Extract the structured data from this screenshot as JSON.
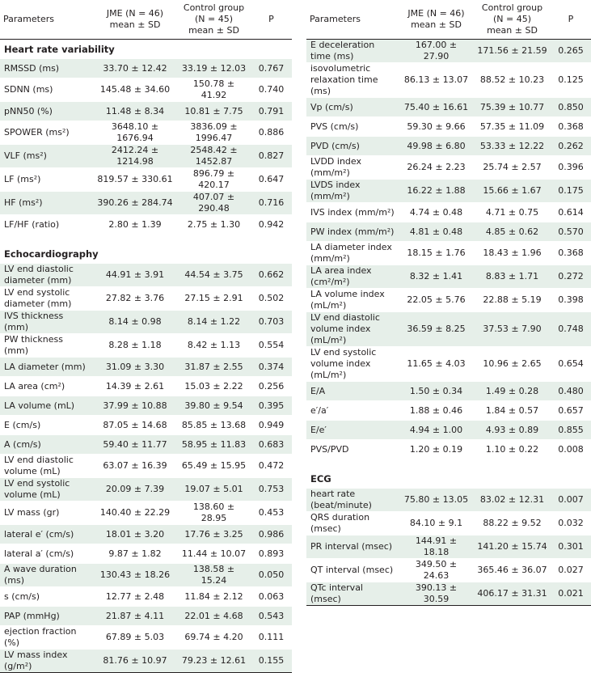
{
  "headers": {
    "parameters": "Parameters",
    "jme": [
      "JME (N = 46)",
      "mean ± SD"
    ],
    "control": [
      "Control group",
      "(N = 45)",
      "mean ± SD"
    ],
    "p": "P"
  },
  "left": [
    {
      "section": "Heart rate variability"
    },
    {
      "label": "RMSSD (ms)",
      "jme": "33.70 ± 12.42",
      "control": "33.19 ± 12.03",
      "p": "0.767"
    },
    {
      "label": "SDNN (ms)",
      "jme": "145.48 ± 34.60",
      "control": "150.78 ± 41.92",
      "p": "0.740"
    },
    {
      "label": "pNN50 (%)",
      "jme": "11.48 ± 8.34",
      "control": "10.81 ± 7.75",
      "p": "0.791"
    },
    {
      "label": "SPOWER (ms²)",
      "jme": "3648.10 ± 1676.94",
      "control": "3836.09 ± 1996.47",
      "p": "0.886"
    },
    {
      "label": "VLF (ms²)",
      "jme": "2412.24 ± 1214.98",
      "control": "2548.42 ± 1452.87",
      "p": "0.827"
    },
    {
      "label": "LF (ms²)",
      "jme": "819.57 ± 330.61",
      "control": "896.79 ± 420.17",
      "p": "0.647"
    },
    {
      "label": "HF (ms²)",
      "jme": "390.26 ± 284.74",
      "control": "407.07 ± 290.48",
      "p": "0.716"
    },
    {
      "label": "LF/HF (ratio)",
      "jme": "2.80 ± 1.39",
      "control": "2.75 ± 1.30",
      "p": "0.942"
    },
    {
      "spacer": true
    },
    {
      "section": "Echocardiography"
    },
    {
      "label": "LV end diastolic diameter (mm)",
      "jme": "44.91 ± 3.91",
      "control": "44.54 ± 3.75",
      "p": "0.662"
    },
    {
      "label": "LV end systolic diameter (mm)",
      "jme": "27.82 ± 3.76",
      "control": "27.15 ± 2.91",
      "p": "0.502"
    },
    {
      "label": "IVS thickness (mm)",
      "jme": "8.14 ± 0.98",
      "control": "8.14 ± 1.22",
      "p": "0.703"
    },
    {
      "label": "PW thickness (mm)",
      "jme": "8.28 ± 1.18",
      "control": "8.42 ± 1.13",
      "p": "0.554"
    },
    {
      "label": "LA diameter (mm)",
      "jme": "31.09 ± 3.30",
      "control": "31.87 ± 2.55",
      "p": "0.374"
    },
    {
      "label": "LA area (cm²)",
      "jme": "14.39 ± 2.61",
      "control": "15.03 ± 2.22",
      "p": "0.256"
    },
    {
      "label": "LA volume (mL)",
      "jme": "37.99 ± 10.88",
      "control": "39.80 ± 9.54",
      "p": "0.395"
    },
    {
      "label": "E (cm/s)",
      "jme": "87.05 ± 14.68",
      "control": "85.85 ± 13.68",
      "p": "0.949"
    },
    {
      "label": "A (cm/s)",
      "jme": "59.40 ± 11.77",
      "control": "58.95 ± 11.83",
      "p": "0.683"
    },
    {
      "label": "LV end diastolic volume (mL)",
      "jme": "63.07 ± 16.39",
      "control": "65.49 ± 15.95",
      "p": "0.472"
    },
    {
      "label": "LV end systolic volume (mL)",
      "jme": "20.09 ± 7.39",
      "control": "19.07 ± 5.01",
      "p": "0.753"
    },
    {
      "label": "LV mass (gr)",
      "jme": "140.40 ± 22.29",
      "control": "138.60 ± 28.95",
      "p": "0.453"
    },
    {
      "label": "lateral e′ (cm/s)",
      "jme": "18.01 ± 3.20",
      "control": "17.76 ± 3.25",
      "p": "0.986"
    },
    {
      "label": "lateral a′ (cm/s)",
      "jme": "9.87 ± 1.82",
      "control": "11.44 ± 10.07",
      "p": "0.893"
    },
    {
      "label": "A wave duration (ms)",
      "jme": "130.43 ± 18.26",
      "control": "138.58 ± 15.24",
      "p": "0.050"
    },
    {
      "label": "s (cm/s)",
      "jme": "12.77 ± 2.48",
      "control": "11.84 ± 2.12",
      "p": "0.063"
    },
    {
      "label": "PAP (mmHg)",
      "jme": "21.87 ± 4.11",
      "control": "22.01 ± 4.68",
      "p": "0.543"
    },
    {
      "label": "ejection fraction (%)",
      "jme": "67.89 ± 5.03",
      "control": "69.74 ± 4.20",
      "p": "0.111"
    },
    {
      "label": "LV mass index (g/m²)",
      "jme": "81.76 ± 10.97",
      "control": "79.23 ± 12.61",
      "p": "0.155"
    }
  ],
  "right": [
    {
      "label": "E deceleration time (ms)",
      "jme": "167.00 ± 27.90",
      "control": "171.56 ± 21.59",
      "p": "0.265"
    },
    {
      "label": "isovolumetric relaxation time (ms)",
      "jme": "86.13 ± 13.07",
      "control": "88.52 ± 10.23",
      "p": "0.125"
    },
    {
      "label": "Vp (cm/s)",
      "jme": "75.40 ± 16.61",
      "control": "75.39 ± 10.77",
      "p": "0.850"
    },
    {
      "label": "PVS (cm/s)",
      "jme": "59.30 ± 9.66",
      "control": "57.35 ± 11.09",
      "p": "0.368"
    },
    {
      "label": "PVD (cm/s)",
      "jme": "49.98 ± 6.80",
      "control": "53.33 ± 12.22",
      "p": "0.262"
    },
    {
      "label": "LVDD index (mm/m²)",
      "jme": "26.24 ± 2.23",
      "control": "25.74 ± 2.57",
      "p": "0.396"
    },
    {
      "label": "LVDS index (mm/m²)",
      "jme": "16.22 ± 1.88",
      "control": "15.66 ± 1.67",
      "p": "0.175"
    },
    {
      "label": "IVS index (mm/m²)",
      "jme": "4.74 ± 0.48",
      "control": "4.71 ± 0.75",
      "p": "0.614"
    },
    {
      "label": "PW index (mm/m²)",
      "jme": "4.81 ± 0.48",
      "control": "4.85 ± 0.62",
      "p": "0.570"
    },
    {
      "label": "LA diameter index (mm/m²)",
      "jme": "18.15 ± 1.76",
      "control": "18.43 ± 1.96",
      "p": "0.368"
    },
    {
      "label": "LA area index (cm²/m²)",
      "jme": "8.32 ± 1.41",
      "control": "8.83 ± 1.71",
      "p": "0.272"
    },
    {
      "label": "LA volume index (mL/m²)",
      "jme": "22.05 ± 5.76",
      "control": "22.88 ± 5.19",
      "p": "0.398"
    },
    {
      "label": "LV end diastolic volume index (mL/m²)",
      "jme": "36.59 ± 8.25",
      "control": "37.53 ± 7.90",
      "p": "0.748"
    },
    {
      "label": "LV end systolic volume index (mL/m²)",
      "jme": "11.65 ± 4.03",
      "control": "10.96 ± 2.65",
      "p": "0.654"
    },
    {
      "label": "E/A",
      "jme": "1.50 ± 0.34",
      "control": "1.49 ± 0.28",
      "p": "0.480"
    },
    {
      "label": "e′/a′",
      "jme": "1.88 ± 0.46",
      "control": "1.84 ± 0.57",
      "p": "0.657"
    },
    {
      "label": "E/e′",
      "jme": "4.94 ± 1.00",
      "control": "4.93 ± 0.89",
      "p": "0.855"
    },
    {
      "label": "PVS/PVD",
      "jme": "1.20 ± 0.19",
      "control": "1.10 ± 0.22",
      "p": "0.008"
    },
    {
      "spacer": true
    },
    {
      "section": "ECG"
    },
    {
      "label": "heart rate (beat/minute)",
      "jme": "75.80 ± 13.05",
      "control": "83.02 ± 12.31",
      "p": "0.007"
    },
    {
      "label": "QRS duration (msec)",
      "jme": "84.10 ± 9.1",
      "control": "88.22 ± 9.52",
      "p": "0.032"
    },
    {
      "label": "PR interval (msec)",
      "jme": "144.91 ± 18.18",
      "control": "141.20 ± 15.74",
      "p": "0.301"
    },
    {
      "label": "QT interval (msec)",
      "jme": "349.50 ± 24.63",
      "control": "365.46 ± 36.07",
      "p": "0.027"
    },
    {
      "label": "QTc interval (msec)",
      "jme": "390.13 ± 30.59",
      "control": "406.17 ± 31.31",
      "p": "0.021"
    }
  ],
  "colors": {
    "row_alt": "#e6efe9",
    "row_plain": "#ffffff",
    "text": "#231f20"
  }
}
